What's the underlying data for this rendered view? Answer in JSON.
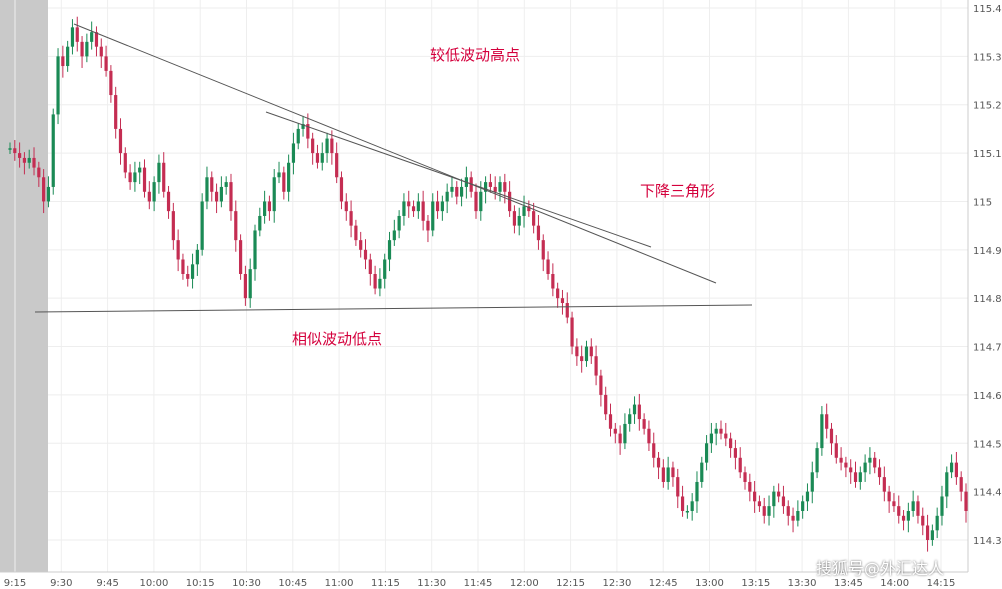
{
  "chart_data": {
    "type": "candlestick",
    "title": "",
    "xlabel": "",
    "ylabel": "",
    "y_axis_side": "right",
    "ylim": [
      114.25,
      115.42
    ],
    "y_ticks": [
      115.4,
      115.3,
      115.2,
      115.1,
      115,
      114.9,
      114.8,
      114.7,
      114.6,
      114.5,
      114.4,
      114.3
    ],
    "x_ticks": [
      "9:15",
      "9:30",
      "9:45",
      "10:00",
      "10:15",
      "10:30",
      "10:45",
      "11:00",
      "11:15",
      "11:30",
      "11:45",
      "12:00",
      "12:15",
      "12:30",
      "12:45",
      "13:00",
      "13:15",
      "13:30",
      "13:45",
      "14:00",
      "14:15"
    ],
    "series": [
      {
        "values": [
          115.11,
          115.1,
          115.09,
          115.08,
          115.09,
          115.07,
          115.05,
          115.0,
          115.03,
          115.18,
          115.3,
          115.28,
          115.32,
          115.36,
          115.33,
          115.3,
          115.33,
          115.35,
          115.32,
          115.3,
          115.27,
          115.22,
          115.15,
          115.1,
          115.06,
          115.04,
          115.06,
          115.07,
          115.02,
          115.0,
          115.04,
          115.08,
          115.02,
          114.98,
          114.92,
          114.88,
          114.85,
          114.84,
          114.87,
          114.9,
          115.0,
          115.05,
          115.02,
          115.0,
          115.03,
          115.04,
          114.98,
          114.92,
          114.85,
          114.8,
          114.86,
          114.94,
          114.97,
          115.0,
          114.98,
          115.05,
          115.06,
          115.02,
          115.08,
          115.12,
          115.15,
          115.16,
          115.13,
          115.1,
          115.08,
          115.1,
          115.13,
          115.1,
          115.05,
          115.0,
          114.98,
          114.95,
          114.92,
          114.9,
          114.88,
          114.85,
          114.82,
          114.84,
          114.88,
          114.92,
          114.94,
          114.97,
          115.0,
          114.99,
          114.98,
          115.0,
          114.96,
          114.94,
          115.0,
          114.98,
          115.0,
          115.02,
          115.03,
          115.01,
          115.03,
          115.05,
          115.02,
          114.98,
          115.02,
          115.04,
          115.03,
          115.02,
          115.04,
          115.02,
          114.98,
          114.95,
          114.97,
          114.99,
          114.98,
          114.95,
          114.92,
          114.88,
          114.85,
          114.82,
          114.8,
          114.79,
          114.76,
          114.7,
          114.68,
          114.67,
          114.7,
          114.68,
          114.64,
          114.6,
          114.56,
          114.53,
          114.52,
          114.5,
          114.54,
          114.56,
          114.58,
          114.55,
          114.53,
          114.5,
          114.47,
          114.45,
          114.42,
          114.45,
          114.43,
          114.39,
          114.36,
          114.36,
          114.38,
          114.42,
          114.46,
          114.5,
          114.52,
          114.53,
          114.52,
          114.51,
          114.49,
          114.47,
          114.44,
          114.42,
          114.4,
          114.38,
          114.37,
          114.35,
          114.37,
          114.4,
          114.39,
          114.37,
          114.35,
          114.34,
          114.36,
          114.38,
          114.4,
          114.44,
          114.49,
          114.56,
          114.53,
          114.5,
          114.47,
          114.46,
          114.45,
          114.44,
          114.42,
          114.44,
          114.46,
          114.47,
          114.45,
          114.43,
          114.4,
          114.38,
          114.37,
          114.35,
          114.34,
          114.36,
          114.38,
          114.35,
          114.33,
          114.3,
          114.32,
          114.35,
          114.39,
          114.44,
          114.46,
          114.43,
          114.4,
          114.36
        ],
        "annotations": [
          {
            "text": "较低波动高点",
            "color": "#d4003c"
          },
          {
            "text": "下降三角形",
            "color": "#d4003c"
          },
          {
            "text": "相似波动低点",
            "color": "#d4003c"
          }
        ]
      }
    ],
    "colors": {
      "up": "#1a8a55",
      "down": "#c42d52",
      "line": "#555555",
      "grid": "#eeeeee",
      "axis_text": "#555555",
      "pre_session": "#c9c9c9"
    },
    "grid": true,
    "watermark": "搜狐号@外汇达人"
  }
}
